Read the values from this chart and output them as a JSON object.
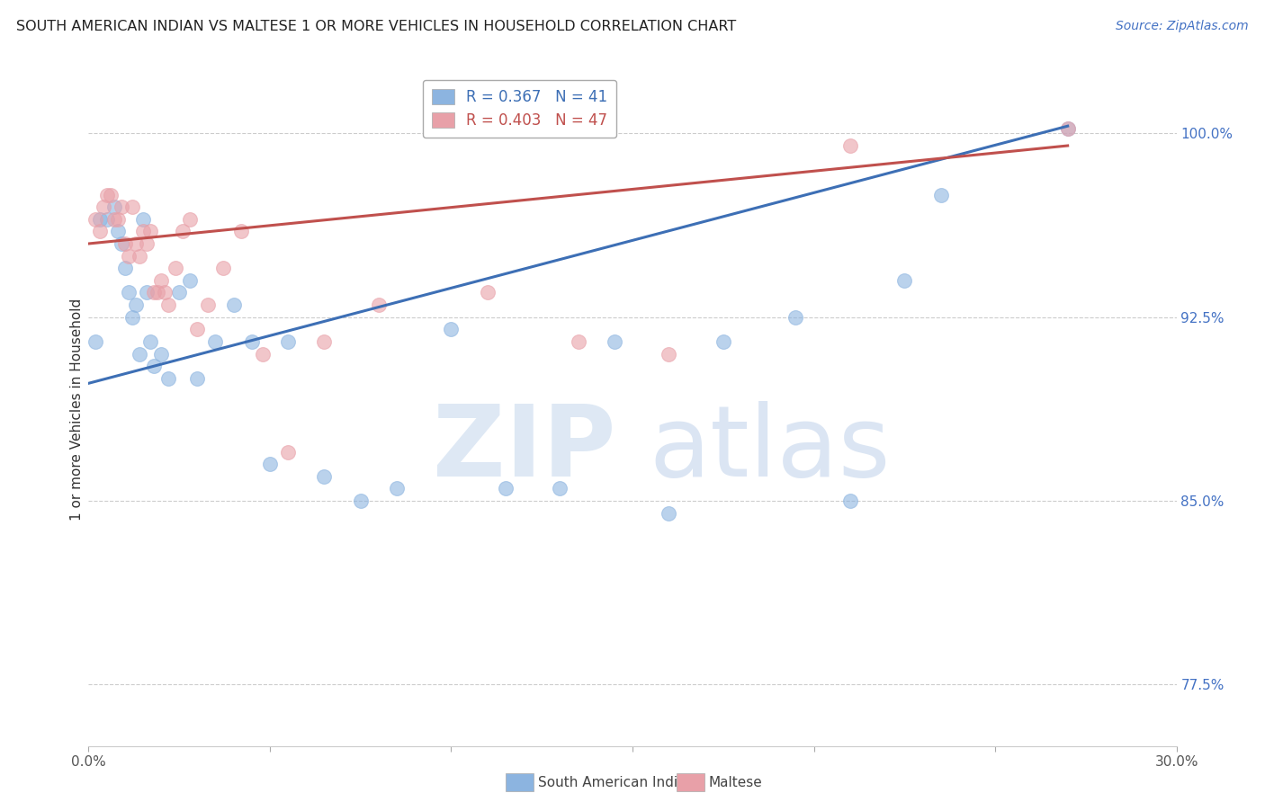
{
  "title": "SOUTH AMERICAN INDIAN VS MALTESE 1 OR MORE VEHICLES IN HOUSEHOLD CORRELATION CHART",
  "source": "Source: ZipAtlas.com",
  "ylabel": "1 or more Vehicles in Household",
  "xlim": [
    0.0,
    30.0
  ],
  "ylim": [
    75.0,
    102.5
  ],
  "yticks": [
    77.5,
    85.0,
    92.5,
    100.0
  ],
  "xticks": [
    0.0,
    5.0,
    10.0,
    15.0,
    20.0,
    25.0,
    30.0
  ],
  "xtick_labels": [
    "0.0%",
    "",
    "",
    "",
    "",
    "",
    "30.0%"
  ],
  "ytick_labels": [
    "77.5%",
    "85.0%",
    "92.5%",
    "100.0%"
  ],
  "blue_label": "South American Indians",
  "pink_label": "Maltese",
  "blue_R": 0.367,
  "blue_N": 41,
  "pink_R": 0.403,
  "pink_N": 47,
  "blue_color": "#8cb4e0",
  "pink_color": "#e8a0a8",
  "blue_line_color": "#3d6fb5",
  "pink_line_color": "#c0504d",
  "background_color": "#ffffff",
  "blue_x": [
    0.2,
    0.3,
    0.5,
    0.7,
    0.8,
    0.9,
    1.0,
    1.1,
    1.2,
    1.3,
    1.4,
    1.5,
    1.6,
    1.7,
    1.8,
    2.0,
    2.2,
    2.5,
    2.8,
    3.0,
    3.5,
    4.0,
    4.5,
    5.0,
    5.5,
    6.5,
    7.5,
    8.5,
    10.0,
    11.5,
    13.0,
    14.5,
    16.0,
    17.5,
    19.5,
    21.0,
    22.5,
    23.5,
    27.0
  ],
  "blue_y": [
    91.5,
    96.5,
    96.5,
    97.0,
    96.0,
    95.5,
    94.5,
    93.5,
    92.5,
    93.0,
    91.0,
    96.5,
    93.5,
    91.5,
    90.5,
    91.0,
    90.0,
    93.5,
    94.0,
    90.0,
    91.5,
    93.0,
    91.5,
    86.5,
    91.5,
    86.0,
    85.0,
    85.5,
    92.0,
    85.5,
    85.5,
    91.5,
    84.5,
    91.5,
    92.5,
    85.0,
    94.0,
    97.5,
    100.2
  ],
  "pink_x": [
    0.2,
    0.3,
    0.4,
    0.5,
    0.6,
    0.7,
    0.8,
    0.9,
    1.0,
    1.1,
    1.2,
    1.3,
    1.4,
    1.5,
    1.6,
    1.7,
    1.8,
    1.9,
    2.0,
    2.1,
    2.2,
    2.4,
    2.6,
    2.8,
    3.0,
    3.3,
    3.7,
    4.2,
    4.8,
    5.5,
    6.5,
    8.0,
    11.0,
    13.5,
    16.0,
    21.0,
    27.0
  ],
  "pink_y": [
    96.5,
    96.0,
    97.0,
    97.5,
    97.5,
    96.5,
    96.5,
    97.0,
    95.5,
    95.0,
    97.0,
    95.5,
    95.0,
    96.0,
    95.5,
    96.0,
    93.5,
    93.5,
    94.0,
    93.5,
    93.0,
    94.5,
    96.0,
    96.5,
    92.0,
    93.0,
    94.5,
    96.0,
    91.0,
    87.0,
    91.5,
    93.0,
    93.5,
    91.5,
    91.0,
    99.5,
    100.2
  ],
  "blue_line_x0": 0.0,
  "blue_line_y0": 89.8,
  "blue_line_x1": 27.0,
  "blue_line_y1": 100.3,
  "pink_line_x0": 0.0,
  "pink_line_y0": 95.5,
  "pink_line_x1": 27.0,
  "pink_line_y1": 99.5
}
